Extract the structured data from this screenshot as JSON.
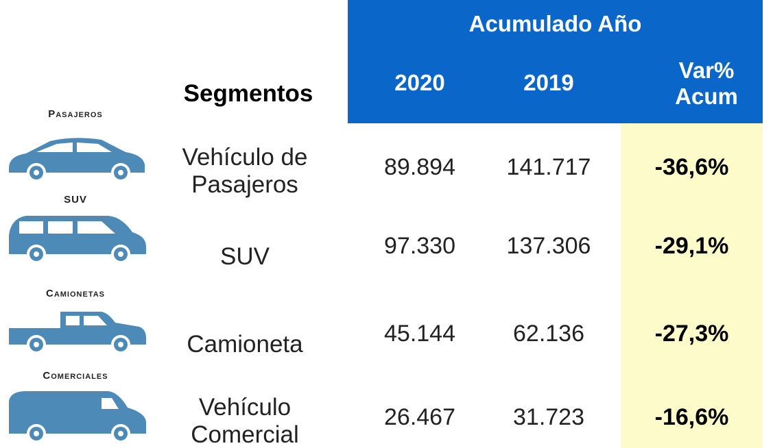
{
  "header": {
    "group": "Acumulado Año",
    "segment_label": "Segmentos",
    "columns": [
      "2020",
      "2019",
      "Var% Acum"
    ]
  },
  "rows": [
    {
      "icon_label": "Pasajeros",
      "segment": "Vehículo de Pasajeros",
      "y2020": "89.894",
      "y2019": "141.717",
      "var": "-36,6%"
    },
    {
      "icon_label": "SUV",
      "segment": "SUV",
      "y2020": "97.330",
      "y2019": "137.306",
      "var": "-29,1%"
    },
    {
      "icon_label": "Camionetas",
      "segment": "Camioneta",
      "y2020": "45.144",
      "y2019": "62.136",
      "var": "-27,3%"
    },
    {
      "icon_label": "Comerciales",
      "segment": "Vehículo Comercial",
      "y2020": "26.467",
      "y2019": "31.723",
      "var": "-16,6%"
    }
  ]
}
